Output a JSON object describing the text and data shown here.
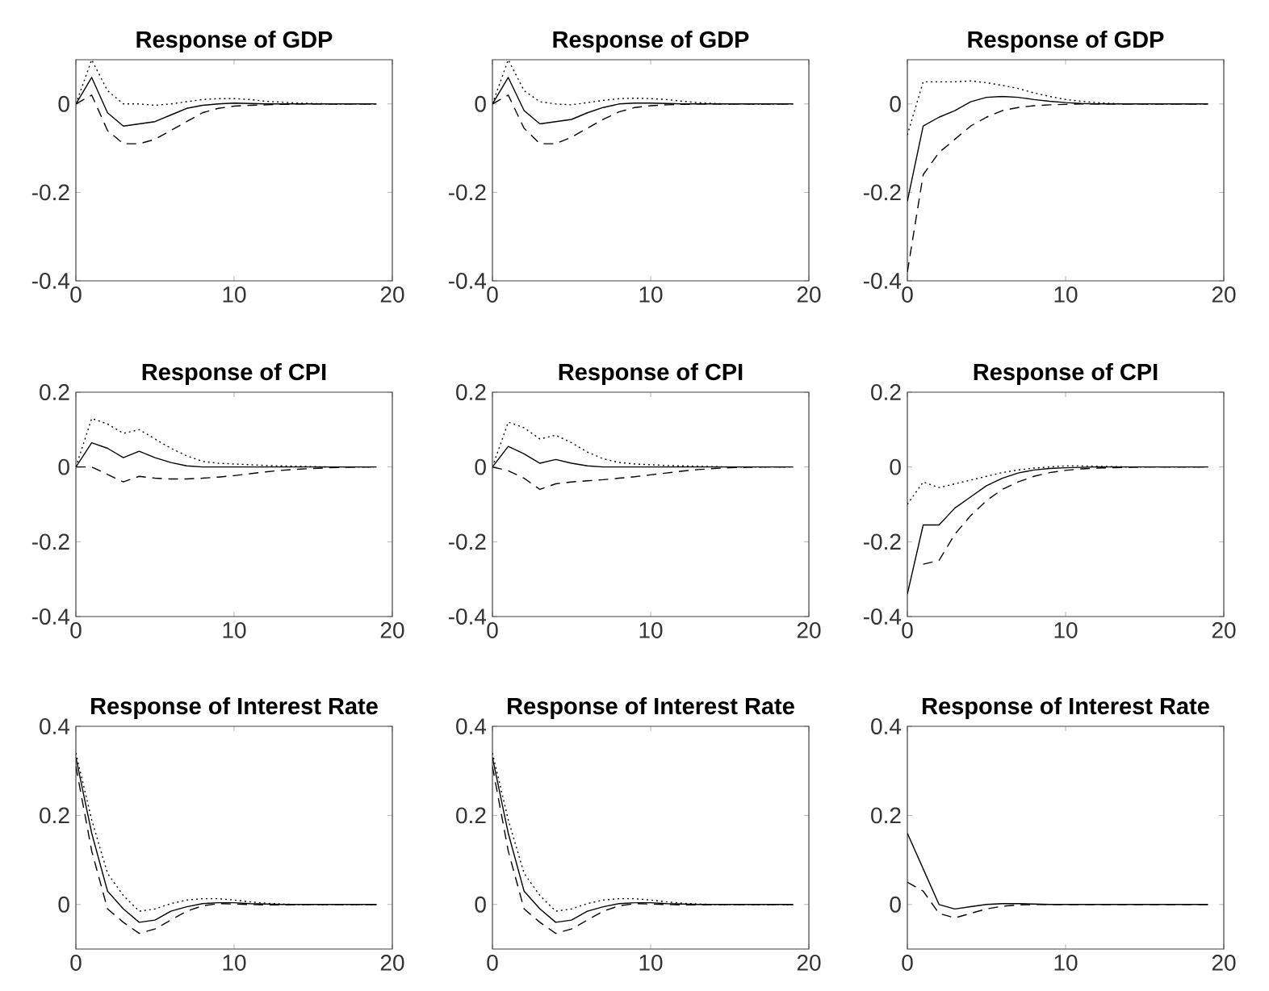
{
  "chart_data": [
    {
      "type": "line",
      "title": "Response of GDP",
      "x": [
        0,
        1,
        2,
        3,
        4,
        5,
        6,
        7,
        8,
        9,
        10,
        11,
        12,
        13,
        14,
        15,
        16,
        17,
        18,
        19
      ],
      "xlim": [
        0,
        20
      ],
      "xticks": [
        0,
        10,
        20
      ],
      "ylim": [
        -0.4,
        0.1
      ],
      "yticks": [
        -0.4,
        -0.2,
        0
      ],
      "marker": "none",
      "series": [
        {
          "color": "#000000",
          "line_style": "solid",
          "values": [
            0,
            0.06,
            -0.02,
            -0.05,
            -0.045,
            -0.04,
            -0.025,
            -0.01,
            -0.003,
            0,
            0.002,
            0.001,
            0,
            0,
            0,
            0,
            0,
            0,
            0,
            0
          ]
        },
        {
          "color": "#000000",
          "line_style": "dashed",
          "values": [
            0,
            0.02,
            -0.06,
            -0.09,
            -0.09,
            -0.08,
            -0.06,
            -0.04,
            -0.02,
            -0.01,
            -0.005,
            -0.003,
            -0.002,
            -0.001,
            0,
            0,
            0,
            0,
            0,
            0
          ]
        },
        {
          "color": "#000000",
          "line_style": "dotted",
          "values": [
            0,
            0.1,
            0.03,
            0,
            0,
            -0.003,
            0,
            0.005,
            0.01,
            0.012,
            0.012,
            0.01,
            0.006,
            0.004,
            0.002,
            0.001,
            0,
            0,
            0,
            0
          ]
        }
      ]
    },
    {
      "type": "line",
      "title": "Response of GDP",
      "x": [
        0,
        1,
        2,
        3,
        4,
        5,
        6,
        7,
        8,
        9,
        10,
        11,
        12,
        13,
        14,
        15,
        16,
        17,
        18,
        19
      ],
      "xlim": [
        0,
        20
      ],
      "xticks": [
        0,
        10,
        20
      ],
      "ylim": [
        -0.4,
        0.1
      ],
      "yticks": [
        -0.4,
        -0.2,
        0
      ],
      "marker": "none",
      "series": [
        {
          "color": "#000000",
          "line_style": "solid",
          "values": [
            0,
            0.06,
            -0.015,
            -0.045,
            -0.04,
            -0.035,
            -0.02,
            -0.008,
            0,
            0.002,
            0.002,
            0.001,
            0,
            0,
            0,
            0,
            0,
            0,
            0,
            0
          ]
        },
        {
          "color": "#000000",
          "line_style": "dashed",
          "values": [
            0,
            0.02,
            -0.055,
            -0.09,
            -0.09,
            -0.075,
            -0.055,
            -0.035,
            -0.018,
            -0.008,
            -0.004,
            -0.002,
            -0.001,
            0,
            0,
            0,
            0,
            0,
            0,
            0
          ]
        },
        {
          "color": "#000000",
          "line_style": "dotted",
          "values": [
            0,
            0.1,
            0.03,
            0.005,
            0,
            -0.002,
            0.003,
            0.008,
            0.012,
            0.013,
            0.012,
            0.01,
            0.006,
            0.003,
            0.001,
            0,
            0,
            0,
            0,
            0
          ]
        }
      ]
    },
    {
      "type": "line",
      "title": "Response of GDP",
      "x": [
        0,
        1,
        2,
        3,
        4,
        5,
        6,
        7,
        8,
        9,
        10,
        11,
        12,
        13,
        14,
        15,
        16,
        17,
        18,
        19
      ],
      "xlim": [
        0,
        20
      ],
      "xticks": [
        0,
        10,
        20
      ],
      "ylim": [
        -0.4,
        0.1
      ],
      "yticks": [
        -0.4,
        -0.2,
        0
      ],
      "marker": "none",
      "series": [
        {
          "color": "#000000",
          "line_style": "solid",
          "values": [
            -0.22,
            -0.05,
            -0.03,
            -0.015,
            0.005,
            0.015,
            0.017,
            0.015,
            0.01,
            0.006,
            0.003,
            0.001,
            0,
            0,
            0,
            0,
            0,
            0,
            0,
            0
          ]
        },
        {
          "color": "#000000",
          "line_style": "dashed",
          "values": [
            -0.38,
            -0.16,
            -0.11,
            -0.08,
            -0.05,
            -0.03,
            -0.015,
            -0.008,
            -0.004,
            -0.002,
            -0.001,
            0,
            0,
            0,
            0,
            0,
            0,
            0,
            0,
            0
          ]
        },
        {
          "color": "#000000",
          "line_style": "dotted",
          "values": [
            -0.07,
            0.05,
            0.05,
            0.05,
            0.052,
            0.048,
            0.042,
            0.035,
            0.025,
            0.017,
            0.01,
            0.006,
            0.003,
            0.001,
            0,
            0,
            0,
            0,
            0,
            0
          ]
        }
      ]
    },
    {
      "type": "line",
      "title": "Response of CPI",
      "x": [
        0,
        1,
        2,
        3,
        4,
        5,
        6,
        7,
        8,
        9,
        10,
        11,
        12,
        13,
        14,
        15,
        16,
        17,
        18,
        19
      ],
      "xlim": [
        0,
        20
      ],
      "xticks": [
        0,
        10,
        20
      ],
      "ylim": [
        -0.4,
        0.2
      ],
      "yticks": [
        -0.4,
        -0.2,
        0,
        0.2
      ],
      "marker": "none",
      "series": [
        {
          "color": "#000000",
          "line_style": "solid",
          "values": [
            0,
            0.065,
            0.05,
            0.025,
            0.042,
            0.025,
            0.012,
            0.003,
            0,
            0,
            0,
            0,
            0,
            0,
            0,
            0,
            0,
            0,
            0,
            0
          ]
        },
        {
          "color": "#000000",
          "line_style": "dashed",
          "values": [
            0,
            0,
            -0.02,
            -0.04,
            -0.025,
            -0.03,
            -0.032,
            -0.032,
            -0.03,
            -0.027,
            -0.023,
            -0.018,
            -0.013,
            -0.009,
            -0.006,
            -0.004,
            -0.002,
            -0.001,
            0,
            0
          ]
        },
        {
          "color": "#000000",
          "line_style": "dotted",
          "values": [
            0,
            0.13,
            0.115,
            0.09,
            0.1,
            0.075,
            0.05,
            0.03,
            0.015,
            0.01,
            0.008,
            0.006,
            0.004,
            0.003,
            0.002,
            0.001,
            0,
            0,
            0,
            0
          ]
        }
      ]
    },
    {
      "type": "line",
      "title": "Response of CPI",
      "x": [
        0,
        1,
        2,
        3,
        4,
        5,
        6,
        7,
        8,
        9,
        10,
        11,
        12,
        13,
        14,
        15,
        16,
        17,
        18,
        19
      ],
      "xlim": [
        0,
        20
      ],
      "xticks": [
        0,
        10,
        20
      ],
      "ylim": [
        -0.4,
        0.2
      ],
      "yticks": [
        -0.4,
        -0.2,
        0,
        0.2
      ],
      "marker": "none",
      "series": [
        {
          "color": "#000000",
          "line_style": "solid",
          "values": [
            0,
            0.055,
            0.035,
            0.01,
            0.02,
            0.01,
            0.003,
            0,
            0,
            0,
            0,
            0,
            0,
            0,
            0,
            0,
            0,
            0,
            0,
            0
          ]
        },
        {
          "color": "#000000",
          "line_style": "dashed",
          "values": [
            0,
            -0.01,
            -0.03,
            -0.06,
            -0.045,
            -0.04,
            -0.037,
            -0.034,
            -0.03,
            -0.026,
            -0.021,
            -0.016,
            -0.011,
            -0.007,
            -0.004,
            -0.002,
            -0.001,
            0,
            0,
            0
          ]
        },
        {
          "color": "#000000",
          "line_style": "dotted",
          "values": [
            0,
            0.12,
            0.105,
            0.075,
            0.085,
            0.065,
            0.04,
            0.022,
            0.012,
            0.008,
            0.006,
            0.004,
            0.003,
            0.002,
            0.001,
            0,
            0,
            0,
            0,
            0
          ]
        }
      ]
    },
    {
      "type": "line",
      "title": "Response of CPI",
      "x": [
        0,
        1,
        2,
        3,
        4,
        5,
        6,
        7,
        8,
        9,
        10,
        11,
        12,
        13,
        14,
        15,
        16,
        17,
        18,
        19
      ],
      "xlim": [
        0,
        20
      ],
      "xticks": [
        0,
        10,
        20
      ],
      "ylim": [
        -0.4,
        0.2
      ],
      "yticks": [
        -0.4,
        -0.2,
        0,
        0.2
      ],
      "marker": "none",
      "series": [
        {
          "color": "#000000",
          "line_style": "solid",
          "values": [
            -0.34,
            -0.155,
            -0.155,
            -0.11,
            -0.08,
            -0.05,
            -0.03,
            -0.016,
            -0.008,
            -0.004,
            -0.002,
            -0.001,
            0,
            0,
            0,
            0,
            0,
            0,
            0,
            0
          ]
        },
        {
          "color": "#000000",
          "line_style": "dashed",
          "values": [
            null,
            -0.26,
            -0.25,
            -0.18,
            -0.13,
            -0.09,
            -0.06,
            -0.04,
            -0.025,
            -0.015,
            -0.009,
            -0.005,
            -0.003,
            -0.002,
            -0.001,
            0,
            0,
            0,
            0,
            0
          ]
        },
        {
          "color": "#000000",
          "line_style": "dotted",
          "values": [
            -0.1,
            -0.04,
            -0.055,
            -0.045,
            -0.035,
            -0.025,
            -0.015,
            -0.008,
            -0.003,
            0,
            0.003,
            0.003,
            0.002,
            0.001,
            0,
            0,
            0,
            0,
            0,
            0
          ]
        }
      ]
    },
    {
      "type": "line",
      "title": "Response of Interest Rate",
      "x": [
        0,
        1,
        2,
        3,
        4,
        5,
        6,
        7,
        8,
        9,
        10,
        11,
        12,
        13,
        14,
        15,
        16,
        17,
        18,
        19
      ],
      "xlim": [
        0,
        20
      ],
      "xticks": [
        0,
        10,
        20
      ],
      "ylim": [
        -0.1,
        0.4
      ],
      "yticks": [
        0,
        0.2,
        0.4
      ],
      "marker": "none",
      "series": [
        {
          "color": "#000000",
          "line_style": "solid",
          "values": [
            0.33,
            0.16,
            0.03,
            -0.01,
            -0.04,
            -0.035,
            -0.015,
            -0.005,
            0.002,
            0.004,
            0.004,
            0.002,
            0.001,
            0,
            0,
            0,
            0,
            0,
            0,
            0
          ]
        },
        {
          "color": "#000000",
          "line_style": "dashed",
          "values": [
            0.31,
            0.12,
            -0.01,
            -0.04,
            -0.065,
            -0.055,
            -0.035,
            -0.015,
            -0.003,
            0.002,
            0.001,
            0,
            -0.001,
            -0.001,
            0,
            0,
            0,
            0,
            0,
            0
          ]
        },
        {
          "color": "#000000",
          "line_style": "dotted",
          "values": [
            0.34,
            0.19,
            0.07,
            0.02,
            -0.015,
            -0.01,
            0.002,
            0.01,
            0.013,
            0.013,
            0.01,
            0.006,
            0.003,
            0.001,
            0,
            0,
            0,
            0,
            0,
            0
          ]
        }
      ]
    },
    {
      "type": "line",
      "title": "Response of Interest Rate",
      "x": [
        0,
        1,
        2,
        3,
        4,
        5,
        6,
        7,
        8,
        9,
        10,
        11,
        12,
        13,
        14,
        15,
        16,
        17,
        18,
        19
      ],
      "xlim": [
        0,
        20
      ],
      "xticks": [
        0,
        10,
        20
      ],
      "ylim": [
        -0.1,
        0.4
      ],
      "yticks": [
        0,
        0.2,
        0.4
      ],
      "marker": "none",
      "series": [
        {
          "color": "#000000",
          "line_style": "solid",
          "values": [
            0.33,
            0.16,
            0.03,
            -0.01,
            -0.04,
            -0.035,
            -0.015,
            -0.005,
            0.002,
            0.004,
            0.004,
            0.002,
            0.001,
            0,
            0,
            0,
            0,
            0,
            0,
            0
          ]
        },
        {
          "color": "#000000",
          "line_style": "dashed",
          "values": [
            0.31,
            0.12,
            -0.01,
            -0.04,
            -0.065,
            -0.055,
            -0.035,
            -0.015,
            -0.003,
            0.002,
            0.001,
            0,
            -0.001,
            -0.001,
            0,
            0,
            0,
            0,
            0,
            0
          ]
        },
        {
          "color": "#000000",
          "line_style": "dotted",
          "values": [
            0.34,
            0.19,
            0.07,
            0.02,
            -0.015,
            -0.01,
            0.002,
            0.01,
            0.013,
            0.013,
            0.01,
            0.006,
            0.003,
            0.001,
            0,
            0,
            0,
            0,
            0,
            0
          ]
        }
      ]
    },
    {
      "type": "line",
      "title": "Response of Interest Rate",
      "x": [
        0,
        1,
        2,
        3,
        4,
        5,
        6,
        7,
        8,
        9,
        10,
        11,
        12,
        13,
        14,
        15,
        16,
        17,
        18,
        19
      ],
      "xlim": [
        0,
        20
      ],
      "xticks": [
        0,
        10,
        20
      ],
      "ylim": [
        -0.1,
        0.4
      ],
      "yticks": [
        0,
        0.2,
        0.4
      ],
      "marker": "none",
      "series": [
        {
          "color": "#000000",
          "line_style": "solid",
          "values": [
            0.16,
            0.08,
            0,
            -0.01,
            -0.005,
            0,
            0.002,
            0.002,
            0.001,
            0,
            0,
            0,
            0,
            0,
            0,
            0,
            0,
            0,
            0,
            0
          ]
        },
        {
          "color": "#000000",
          "line_style": "dashed",
          "values": [
            0.05,
            0.03,
            -0.02,
            -0.03,
            -0.02,
            -0.01,
            -0.004,
            -0.001,
            0,
            0,
            0,
            0,
            0,
            0,
            0,
            0,
            0,
            0,
            0,
            0
          ]
        }
      ]
    }
  ]
}
